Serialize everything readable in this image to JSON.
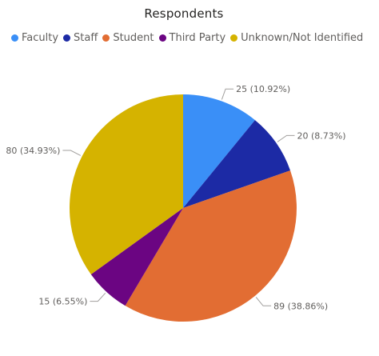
{
  "chart_data": {
    "type": "pie",
    "title": "Respondents",
    "legend_position": "top",
    "slices": [
      {
        "name": "Faculty",
        "value": 25,
        "label": "25 (10.92%)",
        "color": "#3a8ff7"
      },
      {
        "name": "Staff",
        "value": 20,
        "label": "20 (8.73%)",
        "color": "#1c2aa5"
      },
      {
        "name": "Student",
        "value": 89,
        "label": "89 (38.86%)",
        "color": "#e26d33"
      },
      {
        "name": "Third Party",
        "value": 15,
        "label": "15 (6.55%)",
        "color": "#6b0582"
      },
      {
        "name": "Unknown/Not Identified",
        "value": 80,
        "label": "80 (34.93%)",
        "color": "#d5b300"
      }
    ]
  }
}
